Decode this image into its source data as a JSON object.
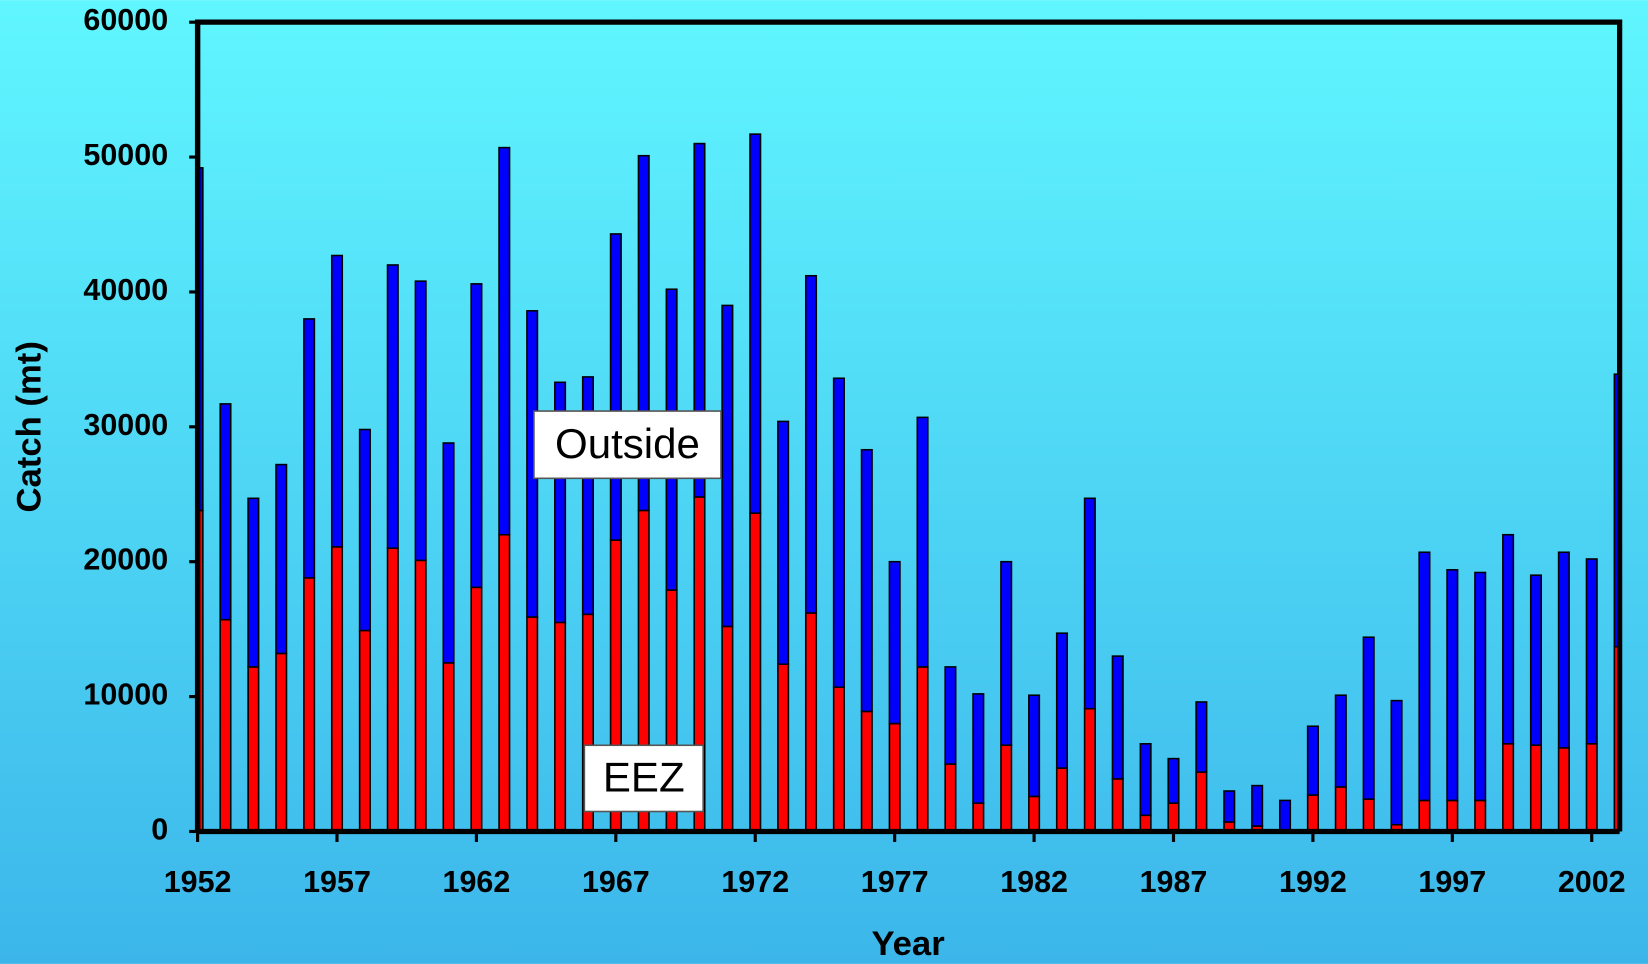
{
  "chart_data": {
    "type": "stacked_bar",
    "x_label": "Year",
    "y_label": "Catch (mt)",
    "x": [
      1952,
      1953,
      1954,
      1955,
      1956,
      1957,
      1958,
      1959,
      1960,
      1961,
      1962,
      1963,
      1964,
      1965,
      1966,
      1967,
      1968,
      1969,
      1970,
      1971,
      1972,
      1973,
      1974,
      1975,
      1976,
      1977,
      1978,
      1979,
      1980,
      1981,
      1982,
      1983,
      1984,
      1985,
      1986,
      1987,
      1988,
      1989,
      1990,
      1991,
      1992,
      1993,
      1994,
      1995,
      1996,
      1997,
      1998,
      1999,
      2000,
      2001,
      2002,
      2003
    ],
    "series": [
      {
        "name": "EEZ",
        "color": "#ff0000",
        "values": [
          23800,
          15700,
          12200,
          13200,
          18800,
          21100,
          14900,
          21000,
          20100,
          12500,
          18100,
          22000,
          15900,
          15500,
          16100,
          21600,
          23800,
          17900,
          24800,
          15200,
          23600,
          12400,
          16200,
          10700,
          8900,
          8000,
          12200,
          5000,
          2100,
          6400,
          2600,
          4700,
          9100,
          3900,
          1200,
          2100,
          4400,
          700,
          400,
          100,
          2700,
          3300,
          2400,
          500,
          2300,
          2300,
          2300,
          6500,
          6400,
          6200,
          6500,
          13700
        ]
      },
      {
        "name": "Outside",
        "color": "#0000ff",
        "values": [
          25400,
          16000,
          12500,
          14000,
          19200,
          21600,
          14900,
          21000,
          20700,
          16300,
          22500,
          28700,
          22700,
          17800,
          17600,
          22700,
          26300,
          22300,
          26200,
          23800,
          28100,
          18000,
          25000,
          22900,
          19400,
          12000,
          18500,
          7200,
          8100,
          13600,
          7500,
          10000,
          15600,
          9100,
          5300,
          3300,
          5200,
          2300,
          3000,
          2200,
          5100,
          6800,
          12000,
          9200,
          18400,
          17100,
          16900,
          15500,
          12600,
          14500,
          13700,
          20200
        ]
      }
    ],
    "xlim": [
      1952,
      2003
    ],
    "xticks": [
      1952,
      1957,
      1962,
      1967,
      1972,
      1977,
      1982,
      1987,
      1992,
      1997,
      2002
    ],
    "ylim": [
      0,
      60000
    ],
    "yticks": [
      0,
      10000,
      20000,
      30000,
      40000,
      50000,
      60000
    ]
  }
}
